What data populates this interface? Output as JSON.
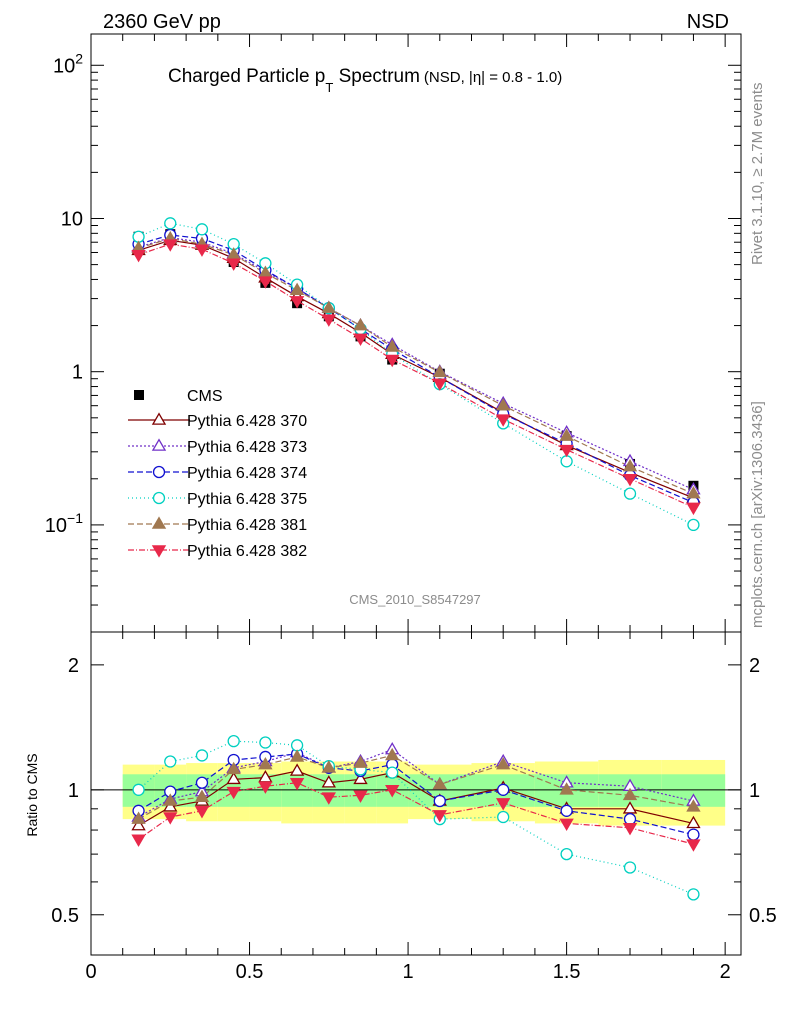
{
  "header": {
    "left": "2360 GeV pp",
    "right": "NSD"
  },
  "title": {
    "main": "Charged Particle p",
    "sub_t": "T",
    "main_rest": " Spectrum",
    "cut_prefix": "(NSD, |",
    "cut_eta": "η",
    "cut_suffix": "| = 0.8 - 1.0)"
  },
  "side_labels": {
    "rivet": "Rivet 3.1.10, ≥ 2.7M events",
    "mcplots": "mcplots.cern.ch [arXiv:1306.3436]"
  },
  "analysis_id": "CMS_2010_S8547297",
  "ratio_ylabel": "Ratio to CMS",
  "top_ticks": [
    {
      "base": "10",
      "exp": "2",
      "value": 100
    },
    {
      "base": "10",
      "exp": "",
      "value": 10
    },
    {
      "base": "1",
      "exp": "",
      "value": 1
    },
    {
      "base": "10",
      "exp": "−1",
      "value": 0.1
    }
  ],
  "ratio_ticks": [
    {
      "label": "2",
      "value": 2
    },
    {
      "label": "1",
      "value": 1
    },
    {
      "label": "0.5",
      "value": 0.5
    }
  ],
  "x_ticks": [
    {
      "label": "0",
      "value": 0
    },
    {
      "label": "0.5",
      "value": 0.5
    },
    {
      "label": "1",
      "value": 1
    },
    {
      "label": "1.5",
      "value": 1.5
    },
    {
      "label": "2",
      "value": 2
    }
  ],
  "chart_data": {
    "type": "scatter",
    "xlim": [
      0,
      2.05
    ],
    "ylim_top": [
      0.02,
      160
    ],
    "ylim_ratio": [
      0.4,
      2.4
    ],
    "log_y_top": true,
    "log_y_ratio": true,
    "x": [
      0.15,
      0.25,
      0.35,
      0.45,
      0.55,
      0.65,
      0.75,
      0.85,
      0.95,
      1.1,
      1.3,
      1.5,
      1.7,
      1.9
    ],
    "x_edges": [
      0.1,
      0.2,
      0.3,
      0.4,
      0.5,
      0.6,
      0.7,
      0.8,
      0.9,
      1.0,
      1.2,
      1.4,
      1.6,
      1.8,
      2.0
    ],
    "data": {
      "name": "CMS",
      "color": "#000000",
      "values": [
        7.6,
        7.9,
        7.1,
        5.2,
        3.8,
        2.8,
        2.3,
        1.7,
        1.2,
        0.97,
        0.53,
        0.38,
        0.25,
        0.18
      ]
    },
    "series": [
      {
        "name": "Pythia 6.428 370",
        "color": "#7f0000",
        "marker": "tri-up-open",
        "dash": "",
        "values": [
          6.2,
          7.2,
          6.7,
          5.5,
          4.1,
          3.1,
          2.4,
          1.8,
          1.3,
          0.92,
          0.54,
          0.33,
          0.22,
          0.15
        ]
      },
      {
        "name": "Pythia 6.428 373",
        "color": "#7030c8",
        "marker": "tri-up-open",
        "dash": "2,2",
        "values": [
          6.5,
          7.5,
          7.0,
          5.9,
          4.5,
          3.5,
          2.6,
          2.0,
          1.5,
          1.0,
          0.62,
          0.4,
          0.26,
          0.17
        ]
      },
      {
        "name": "Pythia 6.428 374",
        "color": "#1010d0",
        "marker": "circle-open",
        "dash": "6,3",
        "values": [
          6.8,
          7.8,
          7.4,
          6.2,
          4.6,
          3.5,
          2.6,
          1.9,
          1.4,
          0.92,
          0.53,
          0.34,
          0.21,
          0.14
        ]
      },
      {
        "name": "Pythia 6.428 375",
        "color": "#00d0c0",
        "marker": "circle-open",
        "dash": "1,3",
        "values": [
          7.6,
          9.3,
          8.5,
          6.8,
          5.1,
          3.7,
          2.6,
          1.9,
          1.3,
          0.83,
          0.46,
          0.26,
          0.16,
          0.1
        ]
      },
      {
        "name": "Pythia 6.428 381",
        "color": "#a07850",
        "marker": "tri-up-filled",
        "dash": "6,3",
        "values": [
          6.4,
          7.4,
          6.8,
          5.8,
          4.4,
          3.4,
          2.6,
          2.0,
          1.45,
          0.99,
          0.6,
          0.38,
          0.24,
          0.16
        ]
      },
      {
        "name": "Pythia 6.428 382",
        "color": "#e8284a",
        "marker": "tri-down-filled",
        "dash": "6,2,1,2",
        "values": [
          5.8,
          6.8,
          6.3,
          5.1,
          3.9,
          2.9,
          2.2,
          1.65,
          1.2,
          0.84,
          0.49,
          0.31,
          0.2,
          0.13
        ]
      }
    ],
    "ratios": {
      "Pythia 6.428 370": [
        0.82,
        0.91,
        0.94,
        1.06,
        1.07,
        1.11,
        1.04,
        1.06,
        1.1,
        0.94,
        1.01,
        0.9,
        0.9,
        0.83
      ],
      "Pythia 6.428 373": [
        0.86,
        0.95,
        0.99,
        1.13,
        1.17,
        1.23,
        1.13,
        1.17,
        1.25,
        1.03,
        1.17,
        1.04,
        1.02,
        0.94
      ],
      "Pythia 6.428 374": [
        0.89,
        0.99,
        1.04,
        1.18,
        1.2,
        1.22,
        1.13,
        1.11,
        1.15,
        0.94,
        1.0,
        0.89,
        0.85,
        0.78
      ],
      "Pythia 6.428 375": [
        1.0,
        1.17,
        1.21,
        1.31,
        1.3,
        1.28,
        1.14,
        1.12,
        1.1,
        0.85,
        0.86,
        0.7,
        0.65,
        0.56
      ],
      "Pythia 6.428 381": [
        0.85,
        0.94,
        0.96,
        1.12,
        1.15,
        1.2,
        1.13,
        1.16,
        1.21,
        1.03,
        1.15,
        1.0,
        0.97,
        0.91
      ],
      "Pythia 6.428 382": [
        0.76,
        0.86,
        0.89,
        0.99,
        1.02,
        1.04,
        0.96,
        0.97,
        1.0,
        0.87,
        0.93,
        0.83,
        0.81,
        0.74
      ]
    },
    "band_inner": [
      0.09,
      0.09,
      0.09,
      0.09,
      0.09,
      0.09,
      0.09,
      0.09,
      0.09,
      0.09,
      0.09,
      0.09,
      0.09,
      0.09
    ],
    "band_outer": [
      0.15,
      0.15,
      0.16,
      0.16,
      0.16,
      0.17,
      0.17,
      0.17,
      0.17,
      0.15,
      0.16,
      0.17,
      0.18,
      0.18
    ],
    "band_inner_color": "#99ff99",
    "band_outer_color": "#ffff88"
  }
}
